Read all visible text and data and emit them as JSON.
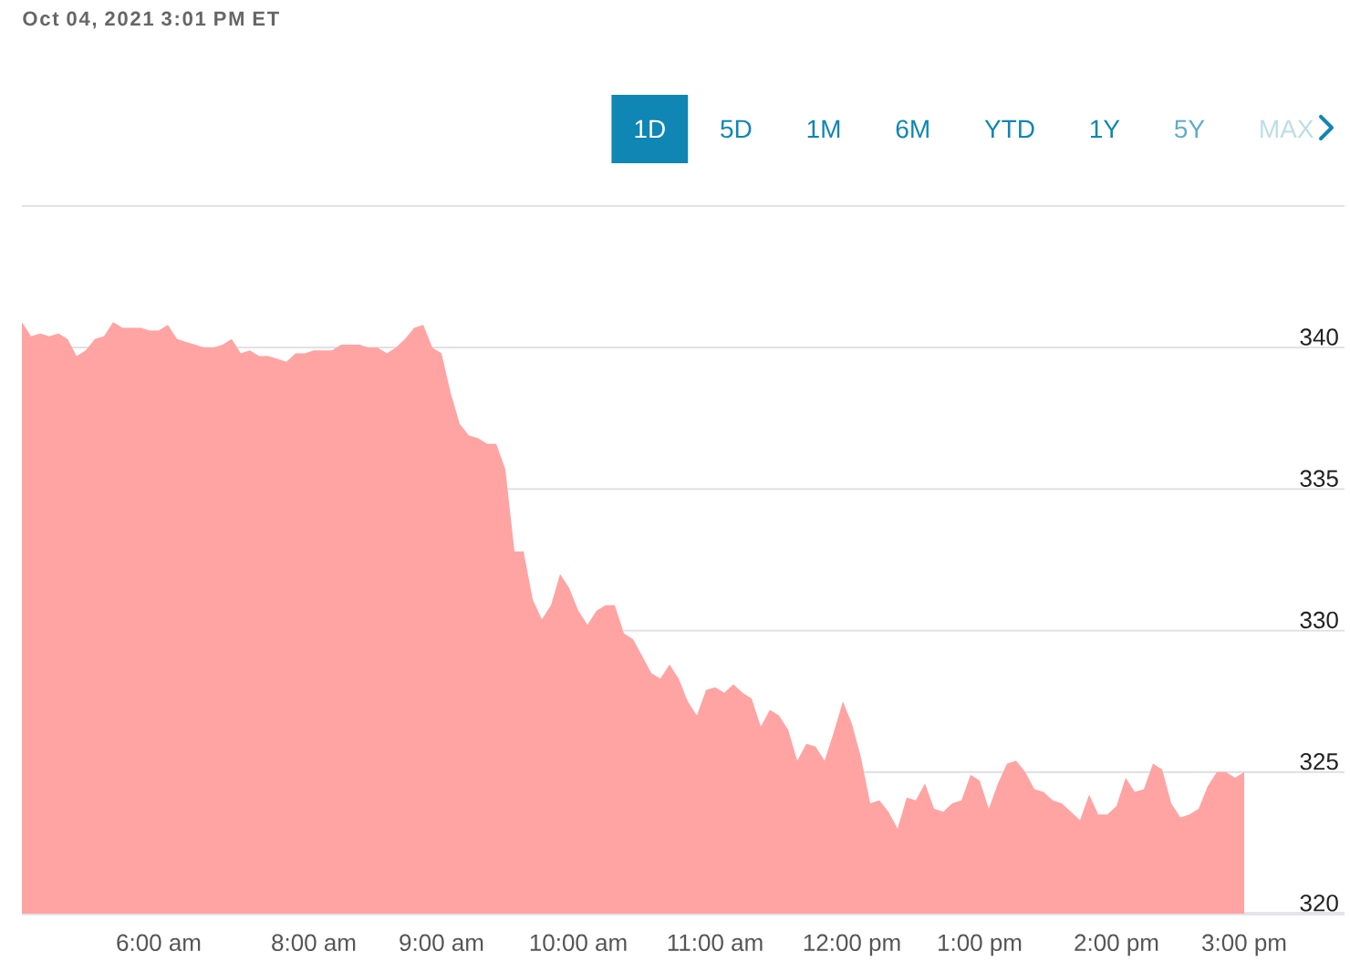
{
  "chart_data": {
    "type": "area",
    "title": "Oct 04, 2021 3:01 PM ET",
    "annotations": [
      "1D",
      "5D",
      "1M",
      "6M",
      "YTD",
      "1Y",
      "5Y",
      "MAX"
    ],
    "categories": [
      null,
      null,
      null,
      null,
      null,
      null,
      null,
      null,
      null,
      null,
      null,
      null,
      null,
      null,
      null,
      "6:00 am",
      null,
      null,
      null,
      null,
      null,
      null,
      null,
      null,
      null,
      null,
      null,
      null,
      null,
      null,
      null,
      null,
      "8:00 am",
      null,
      null,
      null,
      null,
      null,
      null,
      null,
      null,
      null,
      null,
      null,
      null,
      null,
      "9:00 am",
      null,
      null,
      null,
      null,
      null,
      null,
      null,
      null,
      null,
      null,
      null,
      null,
      null,
      null,
      "10:00 am",
      null,
      null,
      null,
      null,
      null,
      null,
      null,
      null,
      null,
      null,
      null,
      null,
      null,
      null,
      "11:00 am",
      null,
      null,
      null,
      null,
      null,
      null,
      null,
      null,
      null,
      null,
      null,
      null,
      null,
      null,
      "12:00 pm",
      null,
      null,
      null,
      null,
      null,
      null,
      null,
      null,
      null,
      null,
      null,
      null,
      null,
      "1:00 pm",
      null,
      null,
      null,
      null,
      null,
      null,
      null,
      null,
      null,
      null,
      null,
      null,
      null,
      null,
      "2:00 pm",
      null,
      null,
      null,
      null,
      null,
      null,
      null,
      null,
      null,
      null,
      null,
      null,
      null,
      "3:00 pm"
    ],
    "values": [
      340.9,
      340.4,
      340.5,
      340.4,
      340.5,
      340.3,
      339.7,
      339.9,
      340.3,
      340.4,
      340.9,
      340.7,
      340.7,
      340.7,
      340.6,
      340.6,
      340.8,
      340.3,
      340.2,
      340.1,
      340.0,
      340.0,
      340.1,
      340.3,
      339.8,
      339.9,
      339.7,
      339.7,
      339.6,
      339.5,
      339.8,
      339.8,
      339.9,
      339.9,
      339.9,
      340.1,
      340.1,
      340.1,
      340.0,
      340.0,
      339.8,
      340.0,
      340.3,
      340.7,
      340.8,
      340.0,
      339.8,
      338.4,
      337.3,
      336.9,
      336.8,
      336.6,
      336.6,
      335.7,
      332.8,
      332.8,
      331.1,
      330.4,
      330.9,
      332.0,
      331.5,
      330.7,
      330.2,
      330.7,
      330.9,
      330.9,
      329.9,
      329.7,
      329.1,
      328.5,
      328.3,
      328.8,
      328.3,
      327.5,
      327.0,
      327.9,
      328.0,
      327.8,
      328.1,
      327.8,
      327.6,
      326.6,
      327.2,
      327.0,
      326.5,
      325.4,
      326.0,
      325.9,
      325.4,
      326.4,
      327.5,
      326.7,
      325.5,
      323.9,
      324.0,
      323.6,
      323.0,
      324.1,
      324.0,
      324.6,
      323.7,
      323.6,
      323.9,
      324.0,
      324.9,
      324.7,
      323.7,
      324.6,
      325.3,
      325.4,
      325.0,
      324.4,
      324.3,
      324.0,
      323.9,
      323.6,
      323.3,
      324.2,
      323.5,
      323.5,
      323.8,
      324.8,
      324.3,
      324.4,
      325.3,
      325.1,
      323.9,
      323.4,
      323.5,
      323.7,
      324.5,
      325.0,
      325.0,
      324.8,
      325.0
    ],
    "color": "#ffa3a3",
    "ylim": [
      320,
      345
    ],
    "yticks": [
      320,
      325,
      330,
      335,
      340,
      {
        "value": 345,
        "label": null
      }
    ],
    "grid": "y"
  }
}
